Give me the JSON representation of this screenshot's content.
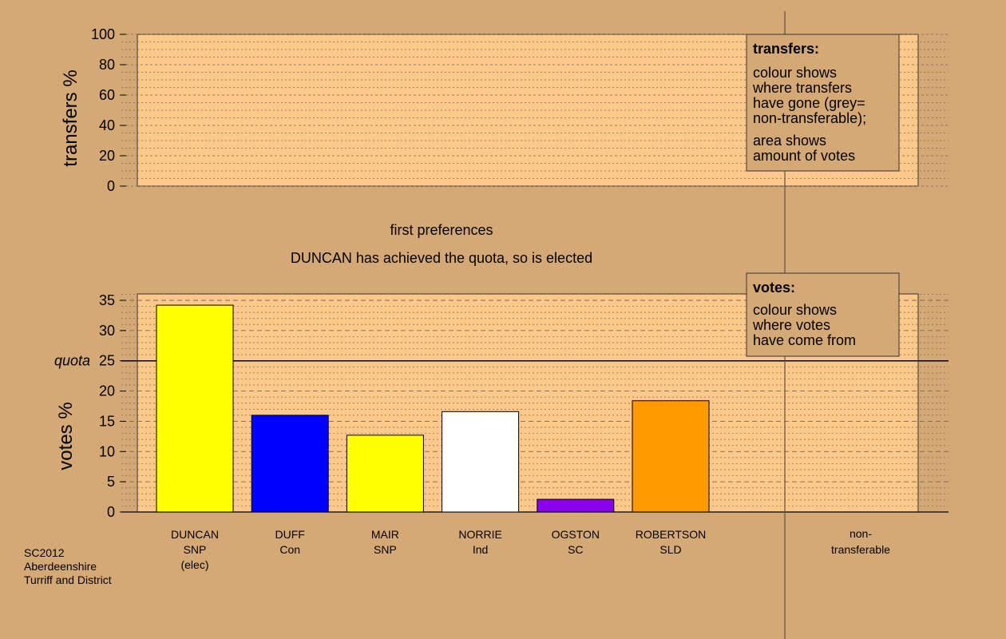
{
  "chart_data": [
    {
      "type": "area",
      "ylabel": "transfers %",
      "ylim": [
        0,
        100
      ],
      "y_ticks": [
        "0",
        "20",
        "40",
        "60",
        "80",
        "100"
      ],
      "values": [],
      "legend": {
        "title": "transfers:",
        "lines1": [
          "colour shows",
          "where transfers",
          "have gone (grey=",
          "non-transferable);"
        ],
        "lines2": [
          "area shows",
          "amount of votes"
        ]
      }
    },
    {
      "type": "bar",
      "title_line1": "first preferences",
      "title_line2": "DUNCAN has achieved the quota, so is elected",
      "ylabel": "votes %",
      "ylim": [
        0,
        35
      ],
      "y_ticks": [
        "0",
        "5",
        "10",
        "15",
        "20",
        "25",
        "30",
        "35"
      ],
      "quota": {
        "label": "quota",
        "value": 25
      },
      "categories": [
        {
          "name": "DUNCAN",
          "party": "SNP",
          "note": "(elec)",
          "value": 34.2,
          "color": "#ffff00"
        },
        {
          "name": "DUFF",
          "party": "Con",
          "note": "",
          "value": 16.0,
          "color": "#0000ff"
        },
        {
          "name": "MAIR",
          "party": "SNP",
          "note": "",
          "value": 12.7,
          "color": "#ffff00"
        },
        {
          "name": "NORRIE",
          "party": "Ind",
          "note": "",
          "value": 16.6,
          "color": "#ffffff"
        },
        {
          "name": "OGSTON",
          "party": "SC",
          "note": "",
          "value": 2.1,
          "color": "#8800ee"
        },
        {
          "name": "ROBERTSON",
          "party": "SLD",
          "note": "",
          "value": 18.4,
          "color": "#ff9900"
        }
      ],
      "non_transferable": {
        "line1": "non-",
        "line2": "transferable",
        "value": 0
      },
      "legend": {
        "title": "votes:",
        "lines": [
          "colour shows",
          "where votes",
          "have come from"
        ]
      }
    }
  ],
  "footer": {
    "line1": "SC2012",
    "line2": "Aberdeenshire",
    "line3": "Turriff and District"
  },
  "colors": {
    "background": "#d4a976",
    "plot": "#fdc98a"
  }
}
